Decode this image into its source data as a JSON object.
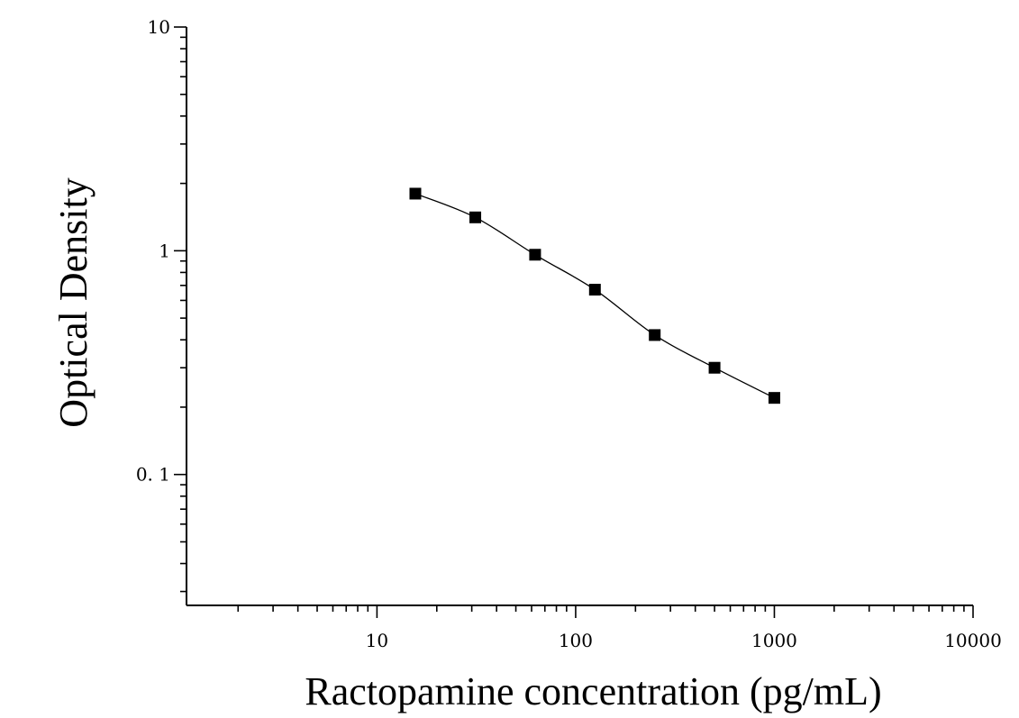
{
  "chart_data": {
    "type": "scatter",
    "xlabel": "Ractopamine concentration (pg/mL)",
    "ylabel": "Optical Density",
    "x_scale": "log",
    "y_scale": "log",
    "xlim": [
      1.1,
      10000
    ],
    "ylim": [
      0.026,
      10
    ],
    "x_ticks": [
      {
        "value": 10,
        "label": "10"
      },
      {
        "value": 100,
        "label": "100"
      },
      {
        "value": 1000,
        "label": "1000"
      },
      {
        "value": 10000,
        "label": "10000"
      }
    ],
    "y_ticks": [
      {
        "value": 10,
        "label": "10"
      },
      {
        "value": 1,
        "label": "1"
      },
      {
        "value": 0.1,
        "label": "0. 1"
      }
    ],
    "grid": false,
    "series": [
      {
        "marker": "square",
        "color": "#000000",
        "x": [
          15.6,
          31.25,
          62.5,
          125,
          250,
          500,
          1000
        ],
        "y": [
          1.8,
          1.41,
          0.96,
          0.67,
          0.42,
          0.3,
          0.22
        ]
      }
    ],
    "fit_curve": {
      "type": "smooth",
      "color": "#000000"
    }
  }
}
